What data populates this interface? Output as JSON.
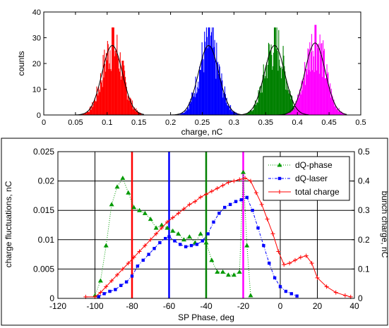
{
  "chart_data": [
    {
      "type": "bar",
      "xlabel": "charge, nC",
      "ylabel": "counts",
      "xlim": [
        0,
        0.5
      ],
      "ylim": [
        0,
        40
      ],
      "xticks": [
        "0",
        "0.05",
        "0.1",
        "0.15",
        "0.2",
        "0.25",
        "0.3",
        "0.35",
        "0.4",
        "0.45",
        "0.5"
      ],
      "yticks": [
        "0",
        "10",
        "20",
        "30",
        "40"
      ],
      "grid": false,
      "series": [
        {
          "color": "#ff0000",
          "mean": 0.108,
          "sigma": 0.016,
          "peak": 27,
          "max": 34,
          "range": [
            0.05,
            0.16
          ]
        },
        {
          "color": "#0000ff",
          "mean": 0.26,
          "sigma": 0.016,
          "peak": 27,
          "max": 34,
          "range": [
            0.2,
            0.32
          ]
        },
        {
          "color": "#008000",
          "mean": 0.364,
          "sigma": 0.016,
          "peak": 27,
          "max": 34,
          "range": [
            0.3,
            0.42
          ]
        },
        {
          "color": "#ff00ff",
          "mean": 0.428,
          "sigma": 0.016,
          "peak": 28,
          "max": 35,
          "range": [
            0.37,
            0.48
          ]
        }
      ],
      "fit_color": "#000000"
    },
    {
      "type": "line",
      "xlabel": "SP Phase, deg",
      "ylabel": "charge fluctuations, nC",
      "y2label": "bunch charge, nC",
      "xlim": [
        -120,
        40
      ],
      "ylim": [
        0,
        0.025
      ],
      "y2lim": [
        0,
        0.5
      ],
      "xticks": [
        "-120",
        "-100",
        "-80",
        "-60",
        "-40",
        "-20",
        "0",
        "20",
        "40"
      ],
      "yticks": [
        "0",
        "0.005",
        "0.01",
        "0.015",
        "0.02",
        "0.025"
      ],
      "y2ticks": [
        "0",
        "0.1",
        "0.2",
        "0.3",
        "0.4",
        "0.5"
      ],
      "grid": true,
      "legend_position": "top-right",
      "series": [
        {
          "name": "dQ-phase",
          "color": "#009900",
          "marker": "triangle",
          "axis": "left",
          "x": [
            -100,
            -97,
            -94,
            -91,
            -88,
            -85,
            -82,
            -79,
            -76,
            -73,
            -70,
            -67,
            -64,
            -61,
            -58,
            -55,
            -52,
            -49,
            -46,
            -43,
            -40,
            -37,
            -34,
            -31,
            -28,
            -25,
            -22,
            -20,
            -18,
            -16
          ],
          "y": [
            0.0005,
            0.003,
            0.009,
            0.016,
            0.019,
            0.0205,
            0.018,
            0.0155,
            0.015,
            0.0145,
            0.0135,
            0.012,
            0.0125,
            0.012,
            0.0115,
            0.011,
            0.01,
            0.0105,
            0.0095,
            0.011,
            0.0095,
            0.0065,
            0.0045,
            0.0045,
            0.004,
            0.004,
            0.0045,
            0.0215,
            0.009,
            0.0005
          ]
        },
        {
          "name": "dQ-laser",
          "color": "#0000ff",
          "marker": "square",
          "axis": "left",
          "x": [
            -98,
            -95,
            -92,
            -89,
            -86,
            -83,
            -80,
            -77,
            -74,
            -71,
            -68,
            -65,
            -62,
            -60,
            -57,
            -54,
            -51,
            -48,
            -45,
            -42,
            -39,
            -36,
            -33,
            -30,
            -27,
            -24,
            -21,
            -18,
            -15,
            -12,
            -9,
            -6,
            -3,
            0,
            3,
            6,
            9
          ],
          "y": [
            0.0003,
            0.0008,
            0.0012,
            0.0015,
            0.0022,
            0.0028,
            0.0038,
            0.0055,
            0.0065,
            0.0075,
            0.0085,
            0.0095,
            0.0102,
            0.0105,
            0.0098,
            0.0092,
            0.0088,
            0.009,
            0.0092,
            0.0098,
            0.011,
            0.013,
            0.0145,
            0.0155,
            0.016,
            0.0165,
            0.0168,
            0.0172,
            0.015,
            0.012,
            0.009,
            0.006,
            0.0035,
            0.002,
            0.0012,
            0.0008,
            0.0004
          ]
        },
        {
          "name": "total charge",
          "color": "#ff0000",
          "marker": "plus",
          "axis": "right",
          "x": [
            -105,
            -100,
            -97,
            -94,
            -91,
            -88,
            -85,
            -82,
            -79,
            -76,
            -73,
            -70,
            -67,
            -64,
            -61,
            -58,
            -55,
            -52,
            -49,
            -46,
            -43,
            -40,
            -37,
            -34,
            -31,
            -28,
            -25,
            -22,
            -19,
            -16,
            -13,
            -10,
            -7,
            -4,
            -1,
            2,
            5,
            8,
            11,
            14,
            17,
            20,
            25,
            30,
            35,
            38
          ],
          "y": [
            0.005,
            0.005,
            0.02,
            0.04,
            0.06,
            0.08,
            0.1,
            0.12,
            0.14,
            0.16,
            0.18,
            0.2,
            0.22,
            0.24,
            0.26,
            0.275,
            0.29,
            0.305,
            0.32,
            0.33,
            0.345,
            0.355,
            0.365,
            0.375,
            0.385,
            0.395,
            0.4,
            0.405,
            0.41,
            0.4,
            0.36,
            0.32,
            0.27,
            0.22,
            0.16,
            0.115,
            0.12,
            0.13,
            0.14,
            0.145,
            0.12,
            0.07,
            0.04,
            0.02,
            0.01,
            0.005
          ]
        }
      ],
      "vertical_lines": [
        {
          "x": -80,
          "color": "#ff0000"
        },
        {
          "x": -60,
          "color": "#0000ff"
        },
        {
          "x": -40,
          "color": "#008000"
        },
        {
          "x": -20,
          "color": "#ff00ff"
        }
      ]
    }
  ]
}
